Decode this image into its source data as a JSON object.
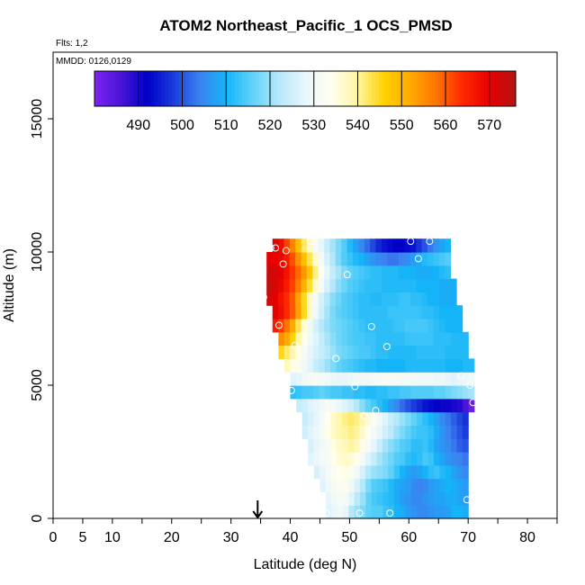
{
  "chart_data": {
    "type": "heatmap",
    "title": "ATOM2 Northeast_Pacific_1 OCS_PMSD",
    "subtitle_flights": "Flts: 1,2",
    "subtitle_dates": "MMDD: 0126,0129",
    "xlabel": "Latitude (deg N)",
    "ylabel": "Altitude (m)",
    "xlim": [
      0,
      85
    ],
    "ylim": [
      0,
      17500
    ],
    "x_ticks": [
      0,
      5,
      10,
      20,
      30,
      40,
      50,
      60,
      70,
      80
    ],
    "x_minor_ticks": [
      15,
      25,
      35,
      45,
      55,
      65,
      75,
      85
    ],
    "y_ticks": [
      0,
      5000,
      10000,
      15000
    ],
    "grid": false,
    "colorbar": {
      "min": 480,
      "max": 576,
      "ticks": [
        490,
        500,
        510,
        520,
        530,
        540,
        550,
        560,
        570
      ],
      "placement": "top-inset"
    },
    "marker": {
      "latitude": 34.5,
      "symbol": "down-arrow"
    },
    "altitude_layers": [
      {
        "alt": 250,
        "lat_min": 46,
        "lat_max": 70,
        "values": [
          527,
          529,
          530,
          528,
          522,
          520,
          518,
          516,
          515,
          515,
          513,
          512,
          510,
          509,
          507,
          506,
          505,
          505,
          506,
          507,
          507,
          508,
          510,
          510,
          509
        ]
      },
      {
        "alt": 750,
        "lat_min": 46,
        "lat_max": 70,
        "values": [
          528,
          530,
          532,
          531,
          527,
          523,
          520,
          516,
          514,
          513,
          512,
          511,
          509,
          507,
          506,
          505,
          505,
          506,
          507,
          508,
          508,
          509,
          509,
          508,
          507
        ]
      },
      {
        "alt": 1250,
        "lat_min": 45,
        "lat_max": 70,
        "values": [
          527,
          530,
          532,
          533,
          533,
          530,
          526,
          522,
          518,
          515,
          514,
          513,
          511,
          509,
          508,
          507,
          505,
          504,
          505,
          507,
          508,
          509,
          510,
          509,
          508,
          507
        ]
      },
      {
        "alt": 1750,
        "lat_min": 44,
        "lat_max": 70,
        "values": [
          526,
          528,
          531,
          533,
          534,
          535,
          533,
          530,
          526,
          522,
          520,
          519,
          518,
          516,
          513,
          510,
          508,
          507,
          508,
          510,
          512,
          513,
          511,
          510,
          508,
          506,
          505
        ]
      },
      {
        "alt": 2250,
        "lat_min": 43,
        "lat_max": 70,
        "values": [
          527,
          529,
          531,
          532,
          534,
          536,
          537,
          536,
          534,
          531,
          527,
          524,
          521,
          519,
          517,
          515,
          514,
          512,
          511,
          512,
          514,
          513,
          510,
          508,
          506,
          505,
          504,
          503
        ]
      },
      {
        "alt": 2750,
        "lat_min": 43,
        "lat_max": 70,
        "values": [
          526,
          528,
          530,
          532,
          535,
          537,
          538,
          540,
          538,
          535,
          532,
          528,
          524,
          521,
          519,
          517,
          515,
          514,
          512,
          512,
          513,
          511,
          508,
          506,
          505,
          503,
          501,
          500
        ]
      },
      {
        "alt": 3250,
        "lat_min": 42,
        "lat_max": 70,
        "values": [
          525,
          527,
          529,
          532,
          535,
          537,
          539,
          540,
          541,
          540,
          537,
          534,
          531,
          528,
          525,
          523,
          520,
          518,
          516,
          514,
          513,
          513,
          512,
          509,
          506,
          504,
          502,
          500,
          498
        ]
      },
      {
        "alt": 3750,
        "lat_min": 42,
        "lat_max": 70,
        "values": [
          524,
          526,
          528,
          531,
          534,
          537,
          539,
          541,
          542,
          541,
          539,
          536,
          533,
          530,
          527,
          524,
          522,
          520,
          518,
          516,
          514,
          512,
          510,
          508,
          505,
          503,
          501,
          499,
          497
        ]
      },
      {
        "alt": 4250,
        "lat_min": 41,
        "lat_max": 71,
        "values": [
          524,
          525,
          527,
          528,
          530,
          532,
          531,
          529,
          527,
          525,
          522,
          519,
          516,
          514,
          512,
          510,
          507,
          505,
          502,
          500,
          498,
          496,
          494,
          493,
          492,
          491,
          491,
          490,
          489,
          486,
          482
        ]
      },
      {
        "alt": 4750,
        "lat_min": 40,
        "lat_max": 71,
        "values": [
          512,
          513,
          514,
          514,
          515,
          516,
          515,
          514,
          514,
          513,
          513,
          512,
          512,
          511,
          511,
          512,
          512,
          513,
          513,
          514,
          514,
          515,
          515,
          515,
          515,
          516,
          516,
          517,
          518,
          519,
          520,
          521
        ]
      },
      {
        "alt": 5250,
        "lat_min": 40,
        "lat_max": 71,
        "values": [
          527,
          528,
          530,
          531,
          532,
          531,
          530,
          529,
          528,
          528,
          529,
          530,
          530,
          530,
          531,
          531,
          532,
          532,
          531,
          531,
          531,
          530,
          530,
          530,
          530,
          529,
          529,
          528,
          527,
          528,
          529,
          530
        ]
      },
      {
        "alt": 5750,
        "lat_min": 39,
        "lat_max": 71,
        "values": [
          538,
          535,
          533,
          530,
          527,
          524,
          522,
          520,
          518,
          516,
          515,
          514,
          513,
          512,
          511,
          511,
          510,
          510,
          510,
          510,
          510,
          511,
          511,
          511,
          511,
          511,
          511,
          511,
          510,
          510,
          510,
          511,
          511
        ]
      },
      {
        "alt": 6250,
        "lat_min": 38,
        "lat_max": 70,
        "values": [
          545,
          542,
          539,
          535,
          531,
          528,
          526,
          524,
          522,
          520,
          518,
          517,
          516,
          515,
          514,
          514,
          513,
          512,
          512,
          511,
          511,
          511,
          511,
          511,
          512,
          512,
          512,
          512,
          512,
          511,
          511,
          511,
          511
        ]
      },
      {
        "alt": 6750,
        "lat_min": 38,
        "lat_max": 70,
        "values": [
          555,
          552,
          546,
          539,
          534,
          530,
          527,
          524,
          521,
          519,
          517,
          516,
          515,
          514,
          514,
          513,
          513,
          512,
          512,
          512,
          512,
          512,
          513,
          513,
          513,
          513,
          513,
          512,
          512,
          512,
          511,
          511,
          511
        ]
      },
      {
        "alt": 7250,
        "lat_min": 37,
        "lat_max": 69,
        "values": [
          566,
          562,
          558,
          552,
          543,
          536,
          530,
          526,
          522,
          520,
          518,
          517,
          516,
          515,
          514,
          513,
          512,
          512,
          512,
          512,
          512,
          513,
          513,
          514,
          514,
          514,
          514,
          513,
          512,
          511,
          510,
          510,
          510
        ]
      },
      {
        "alt": 7750,
        "lat_min": 37,
        "lat_max": 69,
        "values": [
          570,
          568,
          564,
          560,
          553,
          545,
          537,
          530,
          525,
          521,
          518,
          516,
          515,
          514,
          513,
          512,
          512,
          512,
          512,
          512,
          513,
          513,
          513,
          513,
          513,
          513,
          512,
          512,
          511,
          510,
          510,
          510,
          510
        ]
      },
      {
        "alt": 8250,
        "lat_min": 36,
        "lat_max": 68,
        "values": [
          572,
          570,
          567,
          564,
          560,
          553,
          545,
          537,
          531,
          526,
          522,
          519,
          517,
          515,
          514,
          513,
          512,
          512,
          511,
          511,
          512,
          512,
          512,
          513,
          513,
          512,
          512,
          511,
          510,
          510,
          509,
          509,
          509
        ]
      },
      {
        "alt": 8750,
        "lat_min": 36,
        "lat_max": 68,
        "values": [
          574,
          572,
          569,
          566,
          562,
          557,
          551,
          544,
          537,
          531,
          526,
          522,
          519,
          517,
          515,
          514,
          513,
          512,
          512,
          512,
          511,
          511,
          511,
          511,
          511,
          511,
          510,
          510,
          510,
          510,
          509,
          509,
          509
        ]
      },
      {
        "alt": 9250,
        "lat_min": 36,
        "lat_max": 67,
        "values": [
          573,
          572,
          570,
          567,
          563,
          559,
          554,
          548,
          541,
          534,
          528,
          524,
          521,
          518,
          516,
          515,
          514,
          513,
          512,
          512,
          511,
          511,
          511,
          510,
          510,
          510,
          509,
          509,
          509,
          510,
          511,
          512
        ]
      },
      {
        "alt": 9750,
        "lat_min": 36,
        "lat_max": 67,
        "values": [
          570,
          570,
          569,
          566,
          561,
          555,
          549,
          543,
          537,
          531,
          526,
          522,
          518,
          515,
          513,
          511,
          510,
          508,
          506,
          505,
          504,
          503,
          503,
          504,
          505,
          507,
          509,
          511,
          512,
          513,
          514,
          515
        ]
      },
      {
        "alt": 10250,
        "lat_min": 37,
        "lat_max": 67,
        "values": [
          572,
          568,
          562,
          556,
          549,
          542,
          537,
          532,
          528,
          524,
          521,
          518,
          515,
          511,
          508,
          505,
          502,
          499,
          496,
          494,
          493,
          492,
          492,
          493,
          494,
          497,
          500,
          503,
          506,
          508,
          510
        ]
      }
    ],
    "observation_points": [
      {
        "lat": 35.5,
        "alt": 8300
      },
      {
        "lat": 36.7,
        "alt": 10150
      },
      {
        "lat": 37.5,
        "alt": 10150
      },
      {
        "lat": 38.1,
        "alt": 7250
      },
      {
        "lat": 38.8,
        "alt": 9550
      },
      {
        "lat": 39.3,
        "alt": 10050
      },
      {
        "lat": 40.2,
        "alt": 4800
      },
      {
        "lat": 40.8,
        "alt": 6500
      },
      {
        "lat": 43.4,
        "alt": 10400
      },
      {
        "lat": 46.1,
        "alt": 200
      },
      {
        "lat": 47.7,
        "alt": 6000
      },
      {
        "lat": 49.6,
        "alt": 9150
      },
      {
        "lat": 50.9,
        "alt": 4950
      },
      {
        "lat": 51.7,
        "alt": 200
      },
      {
        "lat": 52.5,
        "alt": 3850
      },
      {
        "lat": 53.7,
        "alt": 7200
      },
      {
        "lat": 54.4,
        "alt": 4050
      },
      {
        "lat": 56.3,
        "alt": 6450
      },
      {
        "lat": 56.8,
        "alt": 200
      },
      {
        "lat": 60.3,
        "alt": 10400
      },
      {
        "lat": 61.6,
        "alt": 9750
      },
      {
        "lat": 63.5,
        "alt": 10400
      },
      {
        "lat": 68.8,
        "alt": 5350
      },
      {
        "lat": 69.8,
        "alt": 700
      },
      {
        "lat": 70.3,
        "alt": 5000
      },
      {
        "lat": 70.8,
        "alt": 4350
      }
    ],
    "colormap": [
      "#7b24f0",
      "#4b14d8",
      "#0000c8",
      "#1b3cdc",
      "#3c82f0",
      "#14b4f8",
      "#60d2f8",
      "#b4e8fa",
      "#e8f6fc",
      "#fffef0",
      "#fff5a0",
      "#ffd200",
      "#ffaa00",
      "#ff7300",
      "#ff2800",
      "#e60000",
      "#b41414"
    ]
  }
}
